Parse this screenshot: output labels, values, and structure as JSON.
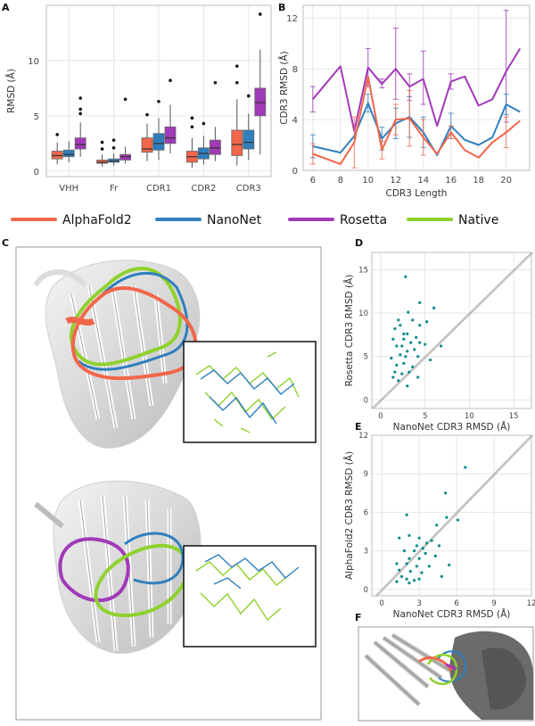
{
  "panels": {
    "A": "A",
    "B": "B",
    "C": "C",
    "D": "D",
    "E": "E",
    "F": "F"
  },
  "colors": {
    "alphafold2": "#f2664a",
    "nanonet": "#2f7fbf",
    "rosetta": "#a13ab8",
    "native": "#8fd12e",
    "scatter": "#0e8a8a"
  },
  "legend": {
    "items": [
      {
        "label": "AlphaFold2",
        "color": "#f2664a"
      },
      {
        "label": "NanoNet",
        "color": "#2f7fbf"
      },
      {
        "label": "Rosetta",
        "color": "#a13ab8"
      },
      {
        "label": "Native",
        "color": "#8fd12e"
      }
    ]
  },
  "chart_data": [
    {
      "id": "A",
      "type": "box",
      "ylabel": "RMSD (Å)",
      "ylim": [
        -0.5,
        15
      ],
      "yticks": [
        0,
        5,
        10
      ],
      "categories": [
        "VHH",
        "Fr",
        "CDR1",
        "CDR2",
        "CDR3"
      ],
      "series": [
        {
          "name": "AlphaFold2",
          "boxes": [
            {
              "min": 0.6,
              "q1": 1.1,
              "med": 1.4,
              "q3": 1.8,
              "max": 2.6,
              "outliers": [
                3.3
              ]
            },
            {
              "min": 0.4,
              "q1": 0.7,
              "med": 0.8,
              "q3": 1.0,
              "max": 1.5,
              "outliers": [
                2.0,
                2.6
              ]
            },
            {
              "min": 0.9,
              "q1": 1.7,
              "med": 2.0,
              "q3": 3.0,
              "max": 4.3,
              "outliers": [
                5.1
              ]
            },
            {
              "min": 0.3,
              "q1": 0.8,
              "med": 1.3,
              "q3": 1.8,
              "max": 3.0,
              "outliers": [
                4.0,
                4.8
              ]
            },
            {
              "min": 0.5,
              "q1": 1.4,
              "med": 2.4,
              "q3": 3.7,
              "max": 6.5,
              "outliers": [
                8.0,
                9.5
              ]
            }
          ]
        },
        {
          "name": "NanoNet",
          "boxes": [
            {
              "min": 0.8,
              "q1": 1.3,
              "med": 1.5,
              "q3": 1.9,
              "max": 2.7,
              "outliers": []
            },
            {
              "min": 0.5,
              "q1": 0.8,
              "med": 0.9,
              "q3": 1.1,
              "max": 1.6,
              "outliers": [
                2.1,
                2.8
              ]
            },
            {
              "min": 1.0,
              "q1": 1.9,
              "med": 2.5,
              "q3": 3.4,
              "max": 4.8,
              "outliers": [
                6.3
              ]
            },
            {
              "min": 0.6,
              "q1": 1.1,
              "med": 1.6,
              "q3": 2.1,
              "max": 3.2,
              "outliers": [
                4.3
              ]
            },
            {
              "min": 1.0,
              "q1": 2.0,
              "med": 2.6,
              "q3": 3.7,
              "max": 5.2,
              "outliers": [
                6.8
              ]
            }
          ]
        },
        {
          "name": "Rosetta",
          "boxes": [
            {
              "min": 1.3,
              "q1": 2.0,
              "med": 2.4,
              "q3": 3.0,
              "max": 4.4,
              "outliers": [
                5.2,
                5.6,
                6.6
              ]
            },
            {
              "min": 0.7,
              "q1": 1.0,
              "med": 1.3,
              "q3": 1.5,
              "max": 2.2,
              "outliers": [
                6.5
              ]
            },
            {
              "min": 1.6,
              "q1": 2.5,
              "med": 3.0,
              "q3": 4.0,
              "max": 6.0,
              "outliers": [
                8.2
              ]
            },
            {
              "min": 0.9,
              "q1": 1.5,
              "med": 2.1,
              "q3": 2.8,
              "max": 4.0,
              "outliers": [
                8.0
              ]
            },
            {
              "min": 1.5,
              "q1": 5.0,
              "med": 6.2,
              "q3": 7.5,
              "max": 11.0,
              "outliers": [
                14.2
              ]
            }
          ]
        }
      ]
    },
    {
      "id": "B",
      "type": "line",
      "xlabel": "CDR3 Length",
      "ylabel": "CDR3 RMSD (Å)",
      "xlim": [
        5.3,
        21.7
      ],
      "ylim": [
        0,
        13
      ],
      "xticks": [
        6,
        8,
        10,
        12,
        14,
        16,
        18,
        20
      ],
      "yticks": [
        0,
        4,
        8,
        12
      ],
      "x": [
        6,
        8,
        9,
        10,
        11,
        12,
        13,
        14,
        15,
        16,
        17,
        18,
        19,
        20,
        21
      ],
      "series": [
        {
          "name": "Rosetta",
          "values": [
            5.6,
            8.2,
            3.1,
            8.1,
            6.8,
            8.0,
            6.6,
            7.2,
            3.5,
            7.0,
            7.4,
            5.1,
            5.6,
            7.8,
            9.6
          ],
          "err_lo": [
            4.6,
            null,
            null,
            6.6,
            6.5,
            5.6,
            5.5,
            5.2,
            null,
            6.4,
            null,
            null,
            null,
            3.8,
            null
          ],
          "err_hi": [
            6.6,
            null,
            null,
            9.6,
            7.2,
            11.2,
            7.6,
            9.4,
            null,
            7.6,
            null,
            null,
            null,
            12.6,
            null
          ]
        },
        {
          "name": "NanoNet",
          "values": [
            1.9,
            1.4,
            2.7,
            5.3,
            2.5,
            3.7,
            4.2,
            3.0,
            1.2,
            3.5,
            2.4,
            2.0,
            2.6,
            5.2,
            4.6
          ],
          "err_lo": [
            1.0,
            null,
            null,
            4.6,
            1.6,
            2.5,
            2.6,
            1.8,
            null,
            2.5,
            null,
            null,
            null,
            4.4,
            null
          ],
          "err_hi": [
            2.8,
            null,
            null,
            6.0,
            3.4,
            4.9,
            5.8,
            4.2,
            null,
            4.5,
            null,
            null,
            null,
            6.0,
            null
          ]
        },
        {
          "name": "AlphaFold2",
          "values": [
            1.3,
            0.5,
            2.2,
            7.4,
            1.6,
            4.0,
            4.1,
            2.6,
            1.3,
            3.0,
            1.6,
            1.0,
            2.2,
            3.0,
            3.9
          ],
          "err_lo": [
            0.5,
            null,
            0.2,
            null,
            0.9,
            2.8,
            1.9,
            1.2,
            null,
            2.5,
            null,
            null,
            null,
            1.8,
            null
          ],
          "err_hi": [
            2.1,
            null,
            4.2,
            null,
            2.3,
            5.2,
            6.3,
            4.0,
            null,
            3.5,
            null,
            null,
            null,
            4.2,
            null
          ]
        }
      ]
    },
    {
      "id": "D",
      "type": "scatter",
      "xlabel": "NanoNet CDR3 RMSD (Å)",
      "ylabel": "Rosetta CDR3 RMSD (Å)",
      "xlim": [
        -1,
        17
      ],
      "ylim": [
        -1,
        17
      ],
      "xticks": [
        0,
        5,
        10,
        15
      ],
      "yticks": [
        0,
        5,
        10,
        15
      ],
      "points": [
        [
          2.8,
          14.2
        ],
        [
          4.4,
          11.2
        ],
        [
          3.1,
          10.1
        ],
        [
          6.0,
          10.6
        ],
        [
          2.0,
          9.2
        ],
        [
          3.6,
          9.2
        ],
        [
          5.2,
          9.0
        ],
        [
          4.4,
          8.6
        ],
        [
          1.6,
          8.2
        ],
        [
          2.2,
          8.6
        ],
        [
          2.6,
          7.6
        ],
        [
          3.0,
          7.6
        ],
        [
          4.0,
          7.2
        ],
        [
          1.4,
          7.0
        ],
        [
          2.6,
          7.0
        ],
        [
          3.4,
          6.6
        ],
        [
          4.4,
          6.6
        ],
        [
          1.8,
          6.2
        ],
        [
          2.4,
          6.2
        ],
        [
          5.0,
          6.4
        ],
        [
          6.8,
          6.2
        ],
        [
          3.0,
          5.6
        ],
        [
          3.8,
          5.8
        ],
        [
          2.2,
          5.2
        ],
        [
          1.2,
          4.8
        ],
        [
          2.8,
          5.0
        ],
        [
          4.2,
          5.0
        ],
        [
          5.6,
          4.6
        ],
        [
          1.8,
          4.0
        ],
        [
          2.6,
          4.2
        ],
        [
          3.6,
          3.8
        ],
        [
          1.6,
          3.2
        ],
        [
          2.4,
          3.0
        ],
        [
          3.2,
          3.2
        ],
        [
          2.0,
          2.2
        ],
        [
          3.0,
          1.6
        ],
        [
          4.2,
          2.6
        ],
        [
          1.4,
          2.6
        ]
      ]
    },
    {
      "id": "E",
      "type": "scatter",
      "xlabel": "NanoNet CDR3 RMSD (Å)",
      "ylabel": "AlphaFold2 CDR3 RMSD (Å)",
      "xlim": [
        -0.8,
        12
      ],
      "ylim": [
        -0.5,
        12
      ],
      "xticks": [
        0,
        3,
        6,
        9,
        12
      ],
      "yticks": [
        0,
        3,
        6,
        9,
        12
      ],
      "points": [
        [
          6.7,
          9.5
        ],
        [
          5.1,
          7.5
        ],
        [
          2.0,
          5.8
        ],
        [
          5.2,
          5.6
        ],
        [
          6.1,
          5.4
        ],
        [
          4.4,
          5.0
        ],
        [
          2.2,
          4.2
        ],
        [
          1.4,
          4.0
        ],
        [
          3.0,
          4.0
        ],
        [
          3.6,
          3.6
        ],
        [
          4.0,
          3.8
        ],
        [
          4.6,
          3.4
        ],
        [
          2.8,
          3.4
        ],
        [
          3.3,
          3.2
        ],
        [
          1.8,
          3.0
        ],
        [
          2.6,
          3.0
        ],
        [
          3.5,
          2.8
        ],
        [
          2.2,
          2.4
        ],
        [
          3.0,
          2.4
        ],
        [
          4.3,
          2.6
        ],
        [
          1.2,
          2.0
        ],
        [
          2.0,
          2.0
        ],
        [
          2.8,
          1.8
        ],
        [
          3.8,
          1.8
        ],
        [
          5.4,
          1.9
        ],
        [
          1.4,
          1.5
        ],
        [
          2.3,
          1.4
        ],
        [
          3.2,
          1.3
        ],
        [
          1.6,
          1.0
        ],
        [
          2.0,
          0.8
        ],
        [
          2.6,
          0.7
        ],
        [
          4.8,
          1.0
        ],
        [
          1.2,
          0.6
        ],
        [
          3.0,
          0.8
        ],
        [
          2.2,
          0.5
        ]
      ]
    }
  ]
}
